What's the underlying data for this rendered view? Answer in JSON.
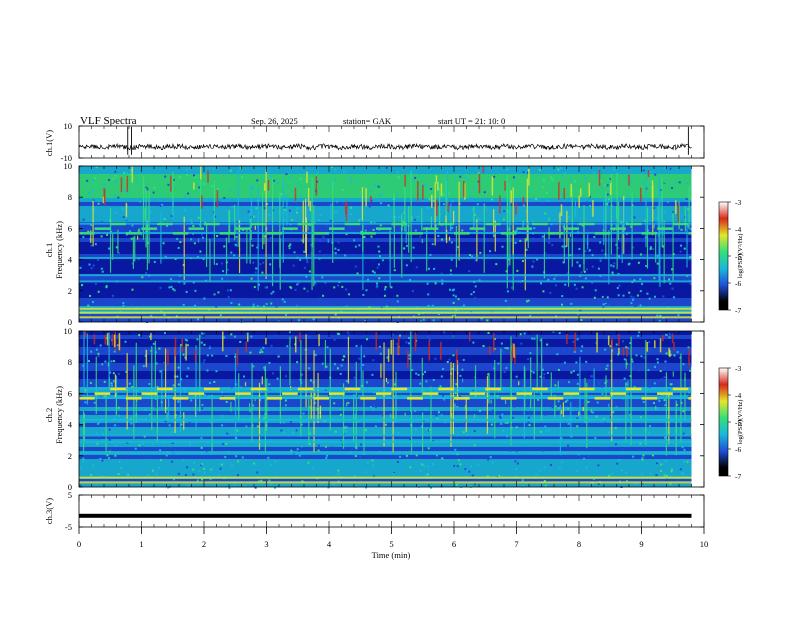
{
  "header": {
    "title": "VLF  Spectra",
    "date": "Sep. 26, 2025",
    "station": "station= GAK",
    "start": "start  UT  =    21: 10: 0"
  },
  "chart_data": [
    {
      "id": "ch1-waveform",
      "type": "line",
      "ylabel": "ch.1(V)",
      "ylim": [
        -10,
        10
      ],
      "yticks": [
        10,
        -10
      ],
      "ytick_labels": [
        "10",
        "-10"
      ],
      "description_values": "noise waveform centered near -3 V with amplitude about ±1.5 V",
      "spikes_min": [
        0.78,
        0.84,
        9.75
      ]
    },
    {
      "id": "ch1-spectrogram",
      "type": "heatmap",
      "ylabel": "ch.1\nFrequency  (kHz)",
      "ylim": [
        0,
        10
      ],
      "yticks": [
        0,
        2,
        4,
        6,
        8,
        10
      ],
      "ytick_labels": [
        "0",
        "2",
        "4",
        "6",
        "8",
        "10"
      ],
      "xlim": [
        0,
        10
      ],
      "colorbar": {
        "label": "log(PSD)(V²/Hz)",
        "range": [
          -7,
          -3
        ],
        "ticks": [
          "-3",
          "-4",
          "-5",
          "-6",
          "-7"
        ]
      },
      "bands_khz": [
        0.3,
        0.6,
        0.85,
        2.6,
        3.0,
        4.1,
        5.7,
        6.3
      ]
    },
    {
      "id": "ch2-spectrogram",
      "type": "heatmap",
      "ylabel": "ch.2\nFrequency  (kHz)",
      "ylim": [
        0,
        10
      ],
      "yticks": [
        0,
        2,
        4,
        6,
        8,
        10
      ],
      "ytick_labels": [
        "0",
        "2",
        "4",
        "6",
        "8",
        "10"
      ],
      "xlim": [
        0,
        10
      ],
      "colorbar": {
        "label": "log(PSD)(V²/Hz)",
        "range": [
          -7,
          -3
        ],
        "ticks": [
          "-3",
          "-4",
          "-5",
          "-6",
          "-7"
        ]
      },
      "bands_khz": [
        0.3,
        0.6,
        2.2,
        2.9,
        3.3,
        4.3,
        5.7,
        6.1,
        6.3
      ]
    },
    {
      "id": "ch3-waveform",
      "type": "line",
      "ylabel": "ch.3(V)",
      "ylim": [
        -5,
        5
      ],
      "yticks": [
        5,
        -5
      ],
      "ytick_labels": [
        "5",
        "-5"
      ],
      "level_v": -1.5
    }
  ],
  "x_axis": {
    "label": "Time  (min)",
    "range": [
      0,
      10
    ],
    "ticks": [
      "0",
      "1",
      "2",
      "3",
      "4",
      "5",
      "6",
      "7",
      "8",
      "9",
      "10"
    ],
    "data_end_min": 9.8
  },
  "colors": {
    "deep": "#000c5e",
    "navy": "#0a1aa8",
    "blue": "#1f4ed8",
    "cyan": "#19b8d9",
    "green": "#33e07a",
    "yellow": "#e6e62a",
    "red": "#d82a1c"
  }
}
